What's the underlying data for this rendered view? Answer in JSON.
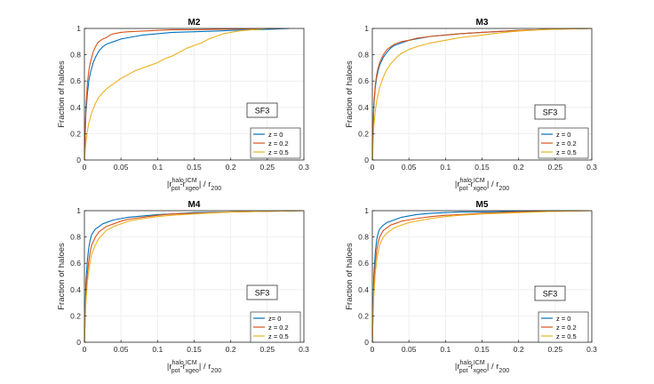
{
  "colors": {
    "z0": "#0072BD",
    "z02": "#D95319",
    "z05": "#EDB120",
    "grid": "#ebebeb",
    "axis": "#262626"
  },
  "chart_data": [
    {
      "type": "line",
      "title": "M2",
      "xlabel_parts": {
        "bar": "|r",
        "sub1": "pot",
        "sup1": "halo",
        "mid": "-r",
        "sub2": "xgeo",
        "sup2": "ICM",
        "tail": "| / r",
        "sub3": "200"
      },
      "ylabel": "Fraction of haloes",
      "xlim": [
        0,
        0.3
      ],
      "ylim": [
        0,
        1
      ],
      "xticks": [
        "0",
        "0.05",
        "0.1",
        "0.15",
        "0.2",
        "0.25",
        "0.3"
      ],
      "yticks": [
        "0",
        "0.2",
        "0.4",
        "0.6",
        "0.8",
        "1"
      ],
      "annotation": "SF3",
      "legend": [
        "z = 0",
        "z = 0.2",
        "z = 0.5"
      ],
      "series": [
        {
          "name": "z = 0",
          "x": [
            0,
            0.002,
            0.004,
            0.006,
            0.008,
            0.01,
            0.012,
            0.015,
            0.02,
            0.025,
            0.03,
            0.035,
            0.04,
            0.05,
            0.06,
            0.07,
            0.08,
            0.1,
            0.12,
            0.15,
            0.18,
            0.2,
            0.23,
            0.26,
            0.28
          ],
          "y": [
            0,
            0.35,
            0.5,
            0.6,
            0.66,
            0.7,
            0.74,
            0.78,
            0.83,
            0.86,
            0.88,
            0.89,
            0.9,
            0.92,
            0.93,
            0.94,
            0.95,
            0.96,
            0.97,
            0.975,
            0.98,
            0.985,
            0.99,
            0.995,
            1
          ]
        },
        {
          "name": "z = 0.2",
          "x": [
            0,
            0.002,
            0.004,
            0.006,
            0.008,
            0.01,
            0.012,
            0.015,
            0.018,
            0.02,
            0.025,
            0.03,
            0.035,
            0.04,
            0.05,
            0.06,
            0.08,
            0.1,
            0.12,
            0.15,
            0.2,
            0.25,
            0.27
          ],
          "y": [
            0,
            0.4,
            0.58,
            0.68,
            0.74,
            0.78,
            0.82,
            0.86,
            0.89,
            0.9,
            0.92,
            0.93,
            0.95,
            0.96,
            0.97,
            0.975,
            0.98,
            0.985,
            0.99,
            0.99,
            0.995,
            1,
            1
          ]
        },
        {
          "name": "z = 0.5",
          "x": [
            0,
            0.002,
            0.004,
            0.006,
            0.008,
            0.01,
            0.015,
            0.02,
            0.025,
            0.03,
            0.035,
            0.04,
            0.05,
            0.06,
            0.07,
            0.08,
            0.09,
            0.1,
            0.11,
            0.12,
            0.13,
            0.14,
            0.15,
            0.16,
            0.17,
            0.18,
            0.19,
            0.2,
            0.21,
            0.23,
            0.25
          ],
          "y": [
            0,
            0.13,
            0.22,
            0.28,
            0.32,
            0.36,
            0.43,
            0.48,
            0.51,
            0.54,
            0.56,
            0.58,
            0.62,
            0.65,
            0.68,
            0.7,
            0.72,
            0.74,
            0.77,
            0.79,
            0.82,
            0.85,
            0.87,
            0.89,
            0.92,
            0.94,
            0.96,
            0.97,
            0.98,
            0.99,
            1
          ]
        }
      ]
    },
    {
      "type": "line",
      "title": "M3",
      "xlabel_parts": {
        "bar": "|r",
        "sub1": "pot",
        "sup1": "halo",
        "mid": "-r",
        "sub2": "xgeo",
        "sup2": "ICM",
        "tail": "| / r",
        "sub3": "200"
      },
      "ylabel": "Fraction of haloes",
      "xlim": [
        0,
        0.3
      ],
      "ylim": [
        0,
        1
      ],
      "xticks": [
        "0",
        "0.05",
        "0.1",
        "0.15",
        "0.2",
        "0.25",
        "0.3"
      ],
      "yticks": [
        "0",
        "0.2",
        "0.4",
        "0.6",
        "0.8",
        "1"
      ],
      "annotation": "SF3",
      "legend": [
        "z = 0",
        "z = 0.2",
        "z = 0.5"
      ],
      "series": [
        {
          "name": "z = 0",
          "x": [
            0,
            0.002,
            0.004,
            0.006,
            0.008,
            0.01,
            0.015,
            0.02,
            0.025,
            0.03,
            0.04,
            0.05,
            0.06,
            0.08,
            0.1,
            0.12,
            0.15,
            0.2,
            0.25,
            0.3
          ],
          "y": [
            0,
            0.4,
            0.55,
            0.63,
            0.68,
            0.72,
            0.78,
            0.82,
            0.85,
            0.87,
            0.89,
            0.91,
            0.92,
            0.94,
            0.95,
            0.96,
            0.97,
            0.985,
            0.995,
            1
          ]
        },
        {
          "name": "z = 0.2",
          "x": [
            0,
            0.002,
            0.004,
            0.006,
            0.008,
            0.01,
            0.015,
            0.02,
            0.025,
            0.03,
            0.04,
            0.05,
            0.06,
            0.08,
            0.1,
            0.12,
            0.15,
            0.2,
            0.25,
            0.3
          ],
          "y": [
            0,
            0.42,
            0.57,
            0.65,
            0.7,
            0.74,
            0.8,
            0.84,
            0.86,
            0.88,
            0.9,
            0.91,
            0.925,
            0.94,
            0.95,
            0.96,
            0.97,
            0.985,
            0.995,
            1
          ]
        },
        {
          "name": "z = 0.5",
          "x": [
            0,
            0.002,
            0.004,
            0.006,
            0.008,
            0.01,
            0.015,
            0.02,
            0.025,
            0.03,
            0.035,
            0.04,
            0.05,
            0.06,
            0.08,
            0.1,
            0.12,
            0.15,
            0.18,
            0.2,
            0.23,
            0.26,
            0.3
          ],
          "y": [
            0,
            0.25,
            0.37,
            0.45,
            0.5,
            0.55,
            0.63,
            0.69,
            0.73,
            0.76,
            0.79,
            0.81,
            0.84,
            0.86,
            0.89,
            0.91,
            0.93,
            0.95,
            0.97,
            0.98,
            0.99,
            0.995,
            1
          ]
        }
      ]
    },
    {
      "type": "line",
      "title": "M4",
      "xlabel_parts": {
        "bar": "|r",
        "sub1": "pot",
        "sup1": "halo",
        "mid": "-r",
        "sub2": "xgeo",
        "sup2": "ICM",
        "tail": "| / r",
        "sub3": "200"
      },
      "ylabel": "Fraction of haloes",
      "xlim": [
        0,
        0.3
      ],
      "ylim": [
        0,
        1
      ],
      "xticks": [
        "0",
        "0.05",
        "0.1",
        "0.15",
        "0.2",
        "0.25",
        "0.3"
      ],
      "yticks": [
        "0",
        "0.2",
        "0.4",
        "0.6",
        "0.8",
        "1"
      ],
      "annotation": "SF3",
      "legend": [
        "z= 0",
        "z = 0.2",
        "z = 0.5"
      ],
      "series": [
        {
          "name": "z= 0",
          "x": [
            0,
            0.002,
            0.004,
            0.006,
            0.008,
            0.01,
            0.015,
            0.02,
            0.025,
            0.03,
            0.04,
            0.05,
            0.06,
            0.08,
            0.1,
            0.12,
            0.15,
            0.2,
            0.25,
            0.3
          ],
          "y": [
            0,
            0.45,
            0.62,
            0.72,
            0.78,
            0.82,
            0.86,
            0.88,
            0.9,
            0.91,
            0.93,
            0.94,
            0.95,
            0.96,
            0.97,
            0.975,
            0.985,
            0.99,
            0.995,
            1
          ]
        },
        {
          "name": "z = 0.2",
          "x": [
            0,
            0.002,
            0.004,
            0.006,
            0.008,
            0.01,
            0.015,
            0.02,
            0.025,
            0.03,
            0.04,
            0.05,
            0.06,
            0.08,
            0.1,
            0.12,
            0.15,
            0.2,
            0.25,
            0.3
          ],
          "y": [
            0,
            0.35,
            0.52,
            0.62,
            0.69,
            0.74,
            0.8,
            0.84,
            0.86,
            0.88,
            0.9,
            0.92,
            0.935,
            0.95,
            0.965,
            0.975,
            0.98,
            0.99,
            0.995,
            1
          ]
        },
        {
          "name": "z = 0.5",
          "x": [
            0,
            0.002,
            0.004,
            0.006,
            0.008,
            0.01,
            0.015,
            0.02,
            0.025,
            0.03,
            0.04,
            0.05,
            0.06,
            0.08,
            0.1,
            0.12,
            0.15,
            0.2,
            0.25,
            0.3
          ],
          "y": [
            0,
            0.3,
            0.45,
            0.55,
            0.62,
            0.67,
            0.74,
            0.79,
            0.82,
            0.85,
            0.88,
            0.9,
            0.92,
            0.94,
            0.955,
            0.965,
            0.975,
            0.99,
            0.995,
            1
          ]
        }
      ]
    },
    {
      "type": "line",
      "title": "M5",
      "xlabel_parts": {
        "bar": "|r",
        "sub1": "pot",
        "sup1": "halo",
        "mid": "-r",
        "sub2": "xgeo",
        "sup2": "ICM",
        "tail": "| / r",
        "sub3": "200"
      },
      "ylabel": "Fraction of haloes",
      "xlim": [
        0,
        0.3
      ],
      "ylim": [
        0,
        1
      ],
      "xticks": [
        "0",
        "0.05",
        "0.1",
        "0.15",
        "0.2",
        "0.25",
        "0.3"
      ],
      "yticks": [
        "0",
        "0.2",
        "0.4",
        "0.6",
        "0.8",
        "1"
      ],
      "annotation": "SF3",
      "legend": [
        "z = 0",
        "z = 0.2",
        "z = 0.5"
      ],
      "series": [
        {
          "name": "z = 0",
          "x": [
            0,
            0.002,
            0.004,
            0.006,
            0.008,
            0.01,
            0.015,
            0.02,
            0.025,
            0.03,
            0.04,
            0.05,
            0.06,
            0.08,
            0.1,
            0.12,
            0.15,
            0.2,
            0.25,
            0.3
          ],
          "y": [
            0,
            0.5,
            0.68,
            0.78,
            0.83,
            0.86,
            0.89,
            0.91,
            0.92,
            0.93,
            0.95,
            0.96,
            0.97,
            0.98,
            0.985,
            0.99,
            0.99,
            0.995,
            1,
            1
          ]
        },
        {
          "name": "z = 0.2",
          "x": [
            0,
            0.002,
            0.004,
            0.006,
            0.008,
            0.01,
            0.015,
            0.02,
            0.025,
            0.03,
            0.04,
            0.05,
            0.06,
            0.08,
            0.1,
            0.12,
            0.15,
            0.2,
            0.25,
            0.3
          ],
          "y": [
            0,
            0.42,
            0.6,
            0.7,
            0.76,
            0.8,
            0.85,
            0.87,
            0.89,
            0.9,
            0.92,
            0.93,
            0.94,
            0.955,
            0.965,
            0.97,
            0.98,
            0.99,
            0.995,
            1
          ]
        },
        {
          "name": "z = 0.5",
          "x": [
            0,
            0.002,
            0.004,
            0.006,
            0.008,
            0.01,
            0.015,
            0.02,
            0.025,
            0.03,
            0.04,
            0.05,
            0.06,
            0.08,
            0.1,
            0.12,
            0.15,
            0.2,
            0.25,
            0.3
          ],
          "y": [
            0,
            0.35,
            0.52,
            0.62,
            0.69,
            0.74,
            0.8,
            0.83,
            0.85,
            0.87,
            0.89,
            0.91,
            0.92,
            0.94,
            0.955,
            0.965,
            0.975,
            0.985,
            0.995,
            1
          ]
        }
      ]
    }
  ]
}
